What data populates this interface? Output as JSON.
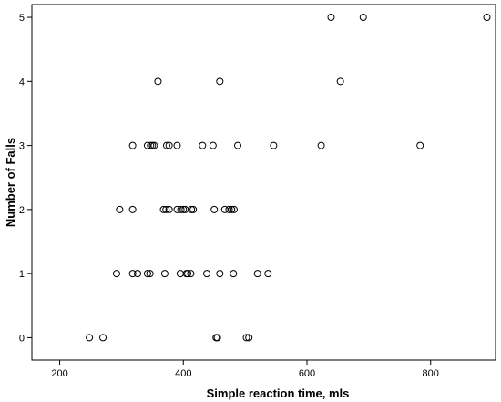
{
  "chart_data": {
    "type": "scatter",
    "xlabel": "Simple reaction time, mls",
    "ylabel": "Number of Falls",
    "xlim": [
      155,
      905
    ],
    "ylim": [
      -0.35,
      5.2
    ],
    "x_ticks": [
      200,
      400,
      600,
      800
    ],
    "y_ticks": [
      0,
      1,
      2,
      3,
      4,
      5
    ],
    "grid": false,
    "points": [
      {
        "x": 248,
        "y": 0
      },
      {
        "x": 270,
        "y": 0
      },
      {
        "x": 453,
        "y": 0
      },
      {
        "x": 455,
        "y": 0
      },
      {
        "x": 502,
        "y": 0
      },
      {
        "x": 506,
        "y": 0
      },
      {
        "x": 292,
        "y": 1
      },
      {
        "x": 318,
        "y": 1
      },
      {
        "x": 326,
        "y": 1
      },
      {
        "x": 342,
        "y": 1
      },
      {
        "x": 346,
        "y": 1
      },
      {
        "x": 370,
        "y": 1
      },
      {
        "x": 395,
        "y": 1
      },
      {
        "x": 405,
        "y": 1
      },
      {
        "x": 407,
        "y": 1
      },
      {
        "x": 412,
        "y": 1
      },
      {
        "x": 438,
        "y": 1
      },
      {
        "x": 459,
        "y": 1
      },
      {
        "x": 481,
        "y": 1
      },
      {
        "x": 520,
        "y": 1
      },
      {
        "x": 537,
        "y": 1
      },
      {
        "x": 297,
        "y": 2
      },
      {
        "x": 318,
        "y": 2
      },
      {
        "x": 368,
        "y": 2
      },
      {
        "x": 372,
        "y": 2
      },
      {
        "x": 377,
        "y": 2
      },
      {
        "x": 390,
        "y": 2
      },
      {
        "x": 396,
        "y": 2
      },
      {
        "x": 400,
        "y": 2
      },
      {
        "x": 403,
        "y": 2
      },
      {
        "x": 413,
        "y": 2
      },
      {
        "x": 416,
        "y": 2
      },
      {
        "x": 450,
        "y": 2
      },
      {
        "x": 467,
        "y": 2
      },
      {
        "x": 474,
        "y": 2
      },
      {
        "x": 478,
        "y": 2
      },
      {
        "x": 482,
        "y": 2
      },
      {
        "x": 318,
        "y": 3
      },
      {
        "x": 342,
        "y": 3
      },
      {
        "x": 347,
        "y": 3
      },
      {
        "x": 350,
        "y": 3
      },
      {
        "x": 353,
        "y": 3
      },
      {
        "x": 373,
        "y": 3
      },
      {
        "x": 377,
        "y": 3
      },
      {
        "x": 390,
        "y": 3
      },
      {
        "x": 431,
        "y": 3
      },
      {
        "x": 448,
        "y": 3
      },
      {
        "x": 488,
        "y": 3
      },
      {
        "x": 546,
        "y": 3
      },
      {
        "x": 623,
        "y": 3
      },
      {
        "x": 783,
        "y": 3
      },
      {
        "x": 359,
        "y": 4
      },
      {
        "x": 459,
        "y": 4
      },
      {
        "x": 654,
        "y": 4
      },
      {
        "x": 639,
        "y": 5
      },
      {
        "x": 691,
        "y": 5
      },
      {
        "x": 891,
        "y": 5
      }
    ]
  }
}
